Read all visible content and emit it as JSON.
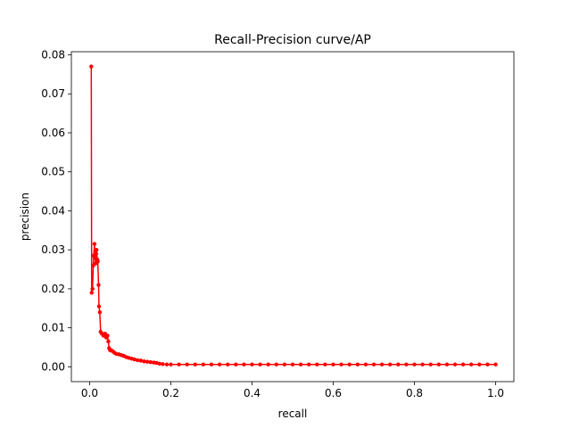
{
  "chart_data": {
    "type": "line",
    "title": "Recall-Precision curve/AP",
    "xlabel": "recall",
    "ylabel": "precision",
    "xlim": [
      -0.045,
      1.045
    ],
    "ylim": [
      -0.0038,
      0.0808
    ],
    "grid": false,
    "legend": "none",
    "series_color": "#ff0000",
    "xticks": [
      {
        "value": 0.0,
        "label": "0.0"
      },
      {
        "value": 0.2,
        "label": "0.2"
      },
      {
        "value": 0.4,
        "label": "0.4"
      },
      {
        "value": 0.6,
        "label": "0.6"
      },
      {
        "value": 0.8,
        "label": "0.8"
      },
      {
        "value": 1.0,
        "label": "1.0"
      }
    ],
    "yticks": [
      {
        "value": 0.0,
        "label": "0.00"
      },
      {
        "value": 0.01,
        "label": "0.01"
      },
      {
        "value": 0.02,
        "label": "0.02"
      },
      {
        "value": 0.03,
        "label": "0.03"
      },
      {
        "value": 0.04,
        "label": "0.04"
      },
      {
        "value": 0.05,
        "label": "0.05"
      },
      {
        "value": 0.06,
        "label": "0.06"
      },
      {
        "value": 0.07,
        "label": "0.07"
      },
      {
        "value": 0.08,
        "label": "0.08"
      }
    ],
    "series": [
      {
        "points": [
          [
            0.004,
            0.077
          ],
          [
            0.005,
            0.019
          ],
          [
            0.007,
            0.02
          ],
          [
            0.009,
            0.026
          ],
          [
            0.01,
            0.0285
          ],
          [
            0.012,
            0.0315
          ],
          [
            0.013,
            0.028
          ],
          [
            0.015,
            0.0265
          ],
          [
            0.016,
            0.029
          ],
          [
            0.017,
            0.03
          ],
          [
            0.019,
            0.0275
          ],
          [
            0.02,
            0.027
          ],
          [
            0.022,
            0.021
          ],
          [
            0.023,
            0.0155
          ],
          [
            0.025,
            0.014
          ],
          [
            0.027,
            0.009
          ],
          [
            0.03,
            0.0085
          ],
          [
            0.034,
            0.008
          ],
          [
            0.038,
            0.0085
          ],
          [
            0.041,
            0.0075
          ],
          [
            0.044,
            0.008
          ],
          [
            0.046,
            0.0065
          ],
          [
            0.048,
            0.0048
          ],
          [
            0.05,
            0.0043
          ],
          [
            0.053,
            0.0042
          ],
          [
            0.057,
            0.004
          ],
          [
            0.061,
            0.0036
          ],
          [
            0.066,
            0.0033
          ],
          [
            0.072,
            0.0032
          ],
          [
            0.078,
            0.003
          ],
          [
            0.084,
            0.0028
          ],
          [
            0.09,
            0.0025
          ],
          [
            0.096,
            0.0023
          ],
          [
            0.103,
            0.0021
          ],
          [
            0.11,
            0.0019
          ],
          [
            0.118,
            0.0017
          ],
          [
            0.126,
            0.0016
          ],
          [
            0.134,
            0.0014
          ],
          [
            0.142,
            0.0013
          ],
          [
            0.15,
            0.0012
          ],
          [
            0.158,
            0.0011
          ],
          [
            0.165,
            0.001
          ],
          [
            0.172,
            0.0008
          ],
          [
            0.18,
            0.0007
          ],
          [
            0.19,
            0.0006
          ],
          [
            0.2,
            0.0006
          ],
          [
            0.22,
            0.0006
          ],
          [
            0.24,
            0.0006
          ],
          [
            0.26,
            0.0006
          ],
          [
            0.28,
            0.0006
          ],
          [
            0.3,
            0.0006
          ],
          [
            0.32,
            0.0006
          ],
          [
            0.34,
            0.0006
          ],
          [
            0.36,
            0.0006
          ],
          [
            0.38,
            0.0006
          ],
          [
            0.4,
            0.0006
          ],
          [
            0.42,
            0.0006
          ],
          [
            0.44,
            0.0006
          ],
          [
            0.46,
            0.0006
          ],
          [
            0.48,
            0.0006
          ],
          [
            0.5,
            0.0006
          ],
          [
            0.52,
            0.0006
          ],
          [
            0.54,
            0.0006
          ],
          [
            0.56,
            0.0006
          ],
          [
            0.58,
            0.0006
          ],
          [
            0.6,
            0.0006
          ],
          [
            0.62,
            0.0006
          ],
          [
            0.64,
            0.0006
          ],
          [
            0.66,
            0.0006
          ],
          [
            0.68,
            0.0006
          ],
          [
            0.7,
            0.0006
          ],
          [
            0.72,
            0.0006
          ],
          [
            0.74,
            0.0006
          ],
          [
            0.76,
            0.0006
          ],
          [
            0.78,
            0.0006
          ],
          [
            0.8,
            0.0006
          ],
          [
            0.82,
            0.0006
          ],
          [
            0.84,
            0.0006
          ],
          [
            0.86,
            0.0006
          ],
          [
            0.88,
            0.0006
          ],
          [
            0.9,
            0.0006
          ],
          [
            0.92,
            0.0006
          ],
          [
            0.94,
            0.0006
          ],
          [
            0.96,
            0.0006
          ],
          [
            0.98,
            0.0006
          ],
          [
            1.0,
            0.0006
          ]
        ]
      }
    ]
  }
}
